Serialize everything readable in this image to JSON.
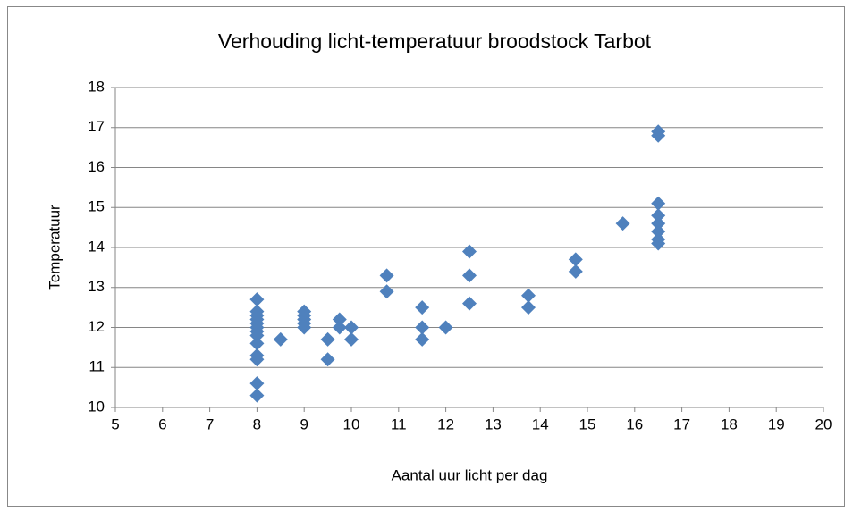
{
  "chart_data": {
    "type": "scatter",
    "title": "Verhouding licht-temperatuur broodstock Tarbot",
    "x_label": "Aantal uur licht per dag",
    "y_label": "Temperatuur",
    "color": "#4f81bd",
    "x": [
      8,
      8,
      8,
      8,
      8,
      8,
      8,
      8,
      8,
      8,
      8,
      8,
      8,
      8.5,
      9,
      9,
      9,
      9,
      9,
      9.5,
      9.5,
      9.75,
      9.75,
      10,
      10,
      10.75,
      10.75,
      11.5,
      11.5,
      11.5,
      12,
      12.5,
      12.5,
      12.5,
      13.75,
      13.75,
      14.75,
      14.75,
      15.75,
      16.5,
      16.5,
      16.5,
      16.5,
      16.5,
      16.5,
      16.5,
      16.5
    ],
    "values": [
      12.7,
      12.4,
      12.3,
      12.2,
      12.1,
      12.0,
      11.9,
      11.8,
      11.6,
      11.3,
      11.2,
      10.6,
      10.3,
      11.7,
      12.4,
      12.3,
      12.2,
      12.1,
      12.0,
      11.7,
      11.2,
      12.2,
      12.0,
      12.0,
      11.7,
      13.3,
      12.9,
      12.5,
      12.0,
      11.7,
      12.0,
      13.9,
      13.3,
      12.6,
      12.8,
      12.5,
      13.7,
      13.4,
      14.6,
      16.9,
      16.8,
      15.1,
      14.8,
      14.6,
      14.4,
      14.2,
      14.1
    ],
    "xlim": [
      5,
      20
    ],
    "xticks": [
      5,
      6,
      7,
      8,
      9,
      10,
      11,
      12,
      13,
      14,
      15,
      16,
      17,
      18,
      19,
      20
    ],
    "ylim": [
      10,
      18
    ],
    "yticks": [
      10,
      11,
      12,
      13,
      14,
      15,
      16,
      17,
      18
    ],
    "grid": true
  }
}
